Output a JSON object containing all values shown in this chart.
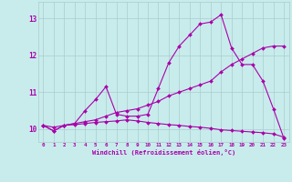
{
  "xlabel": "Windchill (Refroidissement éolien,°C)",
  "bg_color": "#c8ecec",
  "line_color": "#aa00aa",
  "grid_color": "#aacccc",
  "xlim": [
    -0.5,
    23.5
  ],
  "ylim": [
    9.65,
    13.45
  ],
  "xticks": [
    0,
    1,
    2,
    3,
    4,
    5,
    6,
    7,
    8,
    9,
    10,
    11,
    12,
    13,
    14,
    15,
    16,
    17,
    18,
    19,
    20,
    21,
    22,
    23
  ],
  "yticks": [
    10,
    11,
    12,
    13
  ],
  "line1_x": [
    0,
    1,
    2,
    3,
    4,
    5,
    6,
    7,
    8,
    9,
    10,
    11,
    12,
    13,
    14,
    15,
    16,
    17,
    18,
    19,
    20,
    21,
    22,
    23
  ],
  "line1_y": [
    10.1,
    9.95,
    10.1,
    10.15,
    10.5,
    10.8,
    11.15,
    10.4,
    10.35,
    10.35,
    10.4,
    11.1,
    11.8,
    12.25,
    12.55,
    12.85,
    12.9,
    13.1,
    12.2,
    11.75,
    11.75,
    11.3,
    10.55,
    9.75
  ],
  "line2_x": [
    0,
    1,
    2,
    3,
    4,
    5,
    6,
    7,
    8,
    9,
    10,
    11,
    12,
    13,
    14,
    15,
    16,
    17,
    18,
    19,
    20,
    21,
    22,
    23
  ],
  "line2_y": [
    10.1,
    9.95,
    10.1,
    10.15,
    10.2,
    10.25,
    10.35,
    10.45,
    10.5,
    10.55,
    10.65,
    10.75,
    10.9,
    11.0,
    11.1,
    11.2,
    11.3,
    11.55,
    11.75,
    11.9,
    12.05,
    12.2,
    12.25,
    12.25
  ],
  "line3_x": [
    0,
    1,
    2,
    3,
    4,
    5,
    6,
    7,
    8,
    9,
    10,
    11,
    12,
    13,
    14,
    15,
    16,
    17,
    18,
    19,
    20,
    21,
    22,
    23
  ],
  "line3_y": [
    10.1,
    10.05,
    10.1,
    10.12,
    10.15,
    10.18,
    10.2,
    10.22,
    10.25,
    10.22,
    10.18,
    10.15,
    10.12,
    10.1,
    10.07,
    10.05,
    10.02,
    9.98,
    9.96,
    9.94,
    9.92,
    9.9,
    9.87,
    9.78
  ]
}
